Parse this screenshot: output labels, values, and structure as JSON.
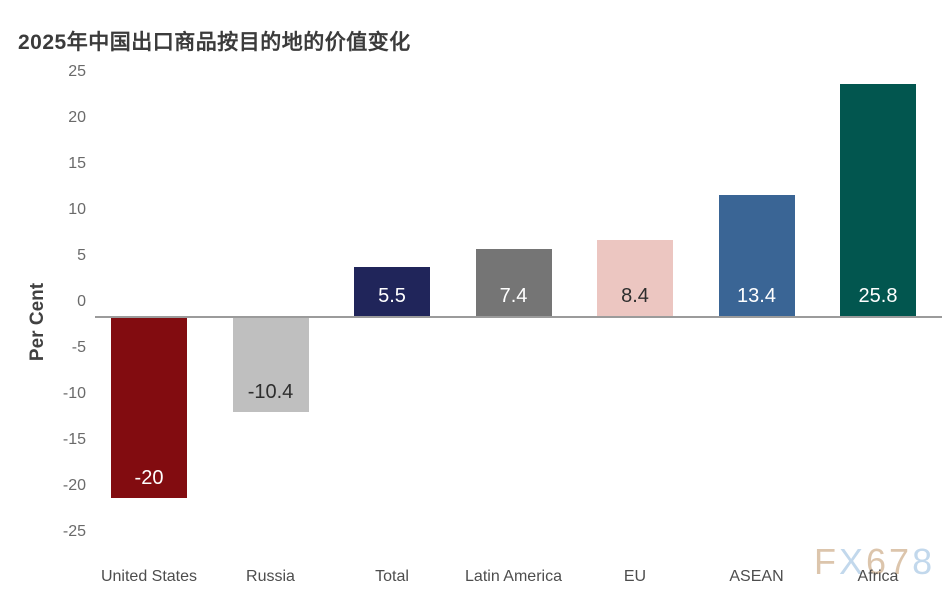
{
  "title": "2025年中国出口商品按目的地的价值变化",
  "y_axis_label": "Per Cent",
  "watermark": {
    "text": "FX678",
    "letters": [
      {
        "char": "F",
        "color": "#d9bfa4"
      },
      {
        "char": "X",
        "color": "#bcd4ea"
      },
      {
        "char": "6",
        "color": "#d9bfa4"
      },
      {
        "char": "7",
        "color": "#d9bfa4"
      },
      {
        "char": "8",
        "color": "#bcd4ea"
      }
    ]
  },
  "chart_data": {
    "type": "bar",
    "title": "2025年中国出口商品按目的地的价值变化",
    "categories": [
      "United States",
      "Russia",
      "Total",
      "Latin America",
      "EU",
      "ASEAN",
      "Africa"
    ],
    "values": [
      -20,
      -10.4,
      5.5,
      7.4,
      8.4,
      13.4,
      25.8
    ],
    "value_labels": [
      "-20",
      "-10.4",
      "5.5",
      "7.4",
      "8.4",
      "13.4",
      "25.8"
    ],
    "bar_colors": [
      "#820c10",
      "#bfbfbf",
      "#20255a",
      "#757575",
      "#ecc6c1",
      "#3a6595",
      "#02564f"
    ],
    "value_label_colors": [
      "#ffffff",
      "#2e2e2e",
      "#ffffff",
      "#ffffff",
      "#2e2e2e",
      "#ffffff",
      "#ffffff"
    ],
    "xlabel": "",
    "ylabel": "Per Cent",
    "ylim": [
      -25,
      25
    ],
    "yticks": [
      25,
      20,
      15,
      10,
      5,
      0,
      -5,
      -10,
      -15,
      -20,
      -25
    ],
    "grid": false,
    "legend": "none",
    "baseline_axis_color": "#9b9b9b"
  }
}
